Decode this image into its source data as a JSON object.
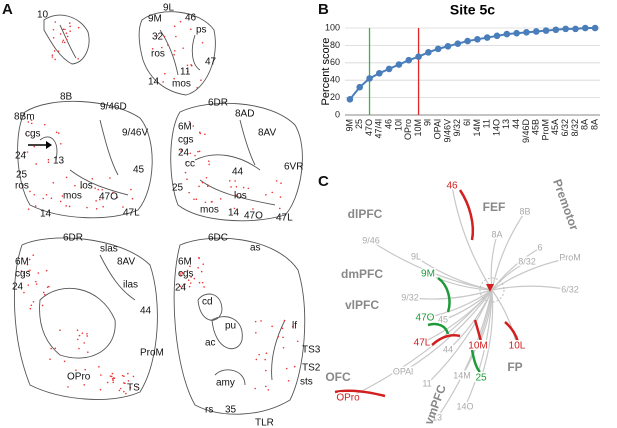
{
  "panel_a": {
    "letter": "A",
    "labels": [
      "10",
      "9L",
      "9M",
      "46",
      "ps",
      "32",
      "ros",
      "47",
      "11",
      "14",
      "mos",
      "8B",
      "9/46D",
      "8Bm",
      "cgs",
      "9/46V",
      "24",
      "13",
      "45",
      "25",
      "ros",
      "los",
      "mos",
      "47O",
      "14",
      "47L",
      "6DR",
      "8AD",
      "6M",
      "cgs",
      "8AV",
      "24",
      "cc",
      "44",
      "6VR",
      "25",
      "los",
      "mos",
      "14",
      "47O",
      "47L",
      "6DR",
      "slas",
      "6M",
      "cgs",
      "8AV",
      "24",
      "ilas",
      "44",
      "ProM",
      "OPro",
      "TS",
      "6DC",
      "as",
      "6M",
      "cgs",
      "24",
      "cd",
      "pu",
      "lf",
      "ac",
      "TS3",
      "TS2",
      "sts",
      "amy",
      "rs",
      "35",
      "TLR"
    ]
  },
  "chart_data": {
    "type": "line",
    "letter": "B",
    "title": "Site 5c",
    "ylabel": "Percent score",
    "categories": [
      "9M",
      "25",
      "47O",
      "47/4l",
      "46",
      "10l",
      "OPro",
      "10M",
      "9l",
      "OPAl",
      "9/46V",
      "9/32",
      "6l",
      "14M",
      "11",
      "14O",
      "13",
      "44",
      "9/46D",
      "45B",
      "ProM",
      "45A",
      "6/32",
      "8/32",
      "8A",
      "8A"
    ],
    "values": [
      18,
      32,
      42,
      48,
      53,
      58,
      63,
      67,
      72,
      76,
      79,
      82,
      85,
      87,
      89,
      91,
      93,
      94,
      95,
      96,
      97,
      98,
      99,
      99,
      100,
      100
    ],
    "color": "#4a7ebb",
    "ylim": [
      0,
      100
    ],
    "yticks": [
      0,
      20,
      40,
      60,
      80,
      100
    ],
    "grid": true,
    "vlines": [
      {
        "category": "47O",
        "color": "#3cb050"
      },
      {
        "category": "10M",
        "color": "#e02828"
      }
    ]
  },
  "panel_c": {
    "letter": "C",
    "labels": [
      "dlPFC",
      "46",
      "9/46",
      "9L",
      "FEF",
      "8B",
      "Premotor",
      "8A",
      "6",
      "ProM",
      "dmPFC",
      "9M",
      "9/32",
      "8/32",
      "6/32",
      "vlPFC",
      "47O",
      "45",
      "47L",
      "44",
      "OFC",
      "OPAl",
      "11",
      "OPro",
      "13",
      "14O",
      "14M",
      "10M",
      "10L",
      "FP",
      "25",
      "vmPFC"
    ]
  }
}
